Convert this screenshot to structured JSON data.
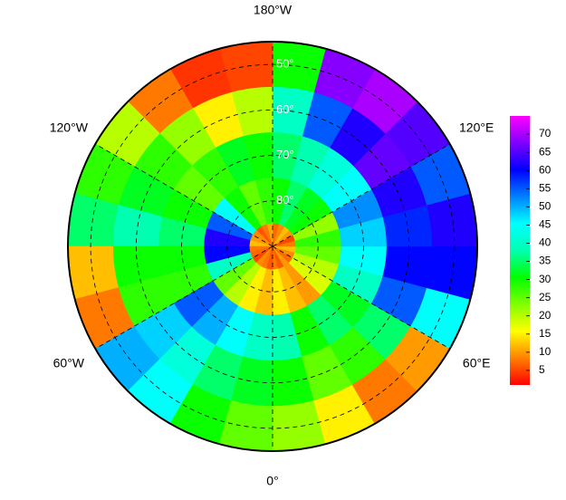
{
  "chart_data": {
    "type": "polar-heatmap",
    "rlim": [
      90,
      45
    ],
    "lat_bands": [
      45,
      55,
      65,
      75,
      85,
      90
    ],
    "lon_bins": [
      0,
      15,
      30,
      45,
      60,
      75,
      90,
      105,
      120,
      135,
      150,
      165,
      180,
      195,
      210,
      225,
      240,
      255,
      270,
      285,
      300,
      315,
      330,
      345,
      360
    ],
    "values": [
      [
        22,
        15,
        8,
        10,
        45,
        60,
        62,
        55,
        65,
        70,
        68,
        30,
        5,
        4,
        8,
        20,
        28,
        35,
        12,
        8,
        50,
        45,
        30,
        25
      ],
      [
        30,
        25,
        28,
        35,
        55,
        60,
        58,
        62,
        66,
        62,
        55,
        40,
        20,
        15,
        22,
        28,
        32,
        38,
        30,
        28,
        48,
        42,
        35,
        32
      ],
      [
        38,
        30,
        35,
        32,
        40,
        45,
        48,
        52,
        45,
        42,
        38,
        35,
        30,
        32,
        28,
        25,
        30,
        35,
        30,
        28,
        55,
        50,
        45,
        40
      ],
      [
        15,
        12,
        10,
        18,
        20,
        25,
        28,
        22,
        30,
        32,
        35,
        30,
        28,
        25,
        30,
        45,
        55,
        62,
        60,
        40,
        25,
        20,
        15,
        12
      ],
      [
        8,
        6,
        10,
        7,
        9,
        12,
        8,
        5,
        10,
        12,
        9,
        7,
        11,
        8,
        6,
        9,
        10,
        12,
        8,
        7,
        5,
        9,
        8,
        6
      ]
    ],
    "lon_labels": [
      {
        "value": 180,
        "label": "180°W"
      },
      {
        "value": 120,
        "label": "120°E"
      },
      {
        "value": 60,
        "label": "60°E"
      },
      {
        "value": 0,
        "label": "0°"
      },
      {
        "value": 300,
        "label": "60°W"
      },
      {
        "value": 240,
        "label": "120°W"
      }
    ],
    "lat_labels": [
      {
        "value": 50,
        "label": "50°"
      },
      {
        "value": 60,
        "label": "60°"
      },
      {
        "value": 70,
        "label": "70°"
      },
      {
        "value": 80,
        "label": "80°"
      }
    ],
    "clim": [
      1,
      75
    ],
    "cticks": [
      5,
      10,
      15,
      20,
      25,
      30,
      35,
      40,
      45,
      50,
      55,
      60,
      65,
      70
    ],
    "colormap": [
      "#ff0000",
      "#ff8000",
      "#ffff00",
      "#80ff00",
      "#00ff00",
      "#00ffb0",
      "#00ffff",
      "#0080ff",
      "#0000ff",
      "#8000ff",
      "#ff00ff"
    ]
  }
}
